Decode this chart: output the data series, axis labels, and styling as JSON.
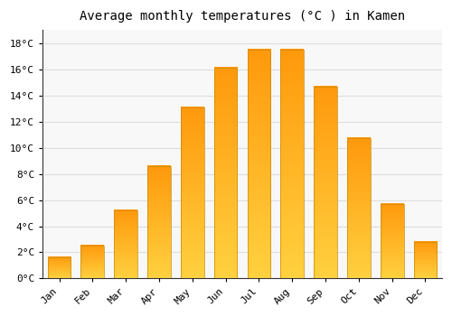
{
  "title": "Average monthly temperatures (°C ) in Kamen",
  "months": [
    "Jan",
    "Feb",
    "Mar",
    "Apr",
    "May",
    "Jun",
    "Jul",
    "Aug",
    "Sep",
    "Oct",
    "Nov",
    "Dec"
  ],
  "values": [
    1.6,
    2.5,
    5.2,
    8.6,
    13.1,
    16.1,
    17.5,
    17.5,
    14.7,
    10.7,
    5.7,
    2.8
  ],
  "bar_color": "#FFA500",
  "bar_edge_color": "#CC8800",
  "background_color": "#FFFFFF",
  "plot_bg_color": "#F8F8F8",
  "grid_color": "#DDDDDD",
  "ylim": [
    0,
    19
  ],
  "yticks": [
    0,
    2,
    4,
    6,
    8,
    10,
    12,
    14,
    16,
    18
  ],
  "title_fontsize": 10,
  "tick_fontsize": 8,
  "font_family": "monospace"
}
